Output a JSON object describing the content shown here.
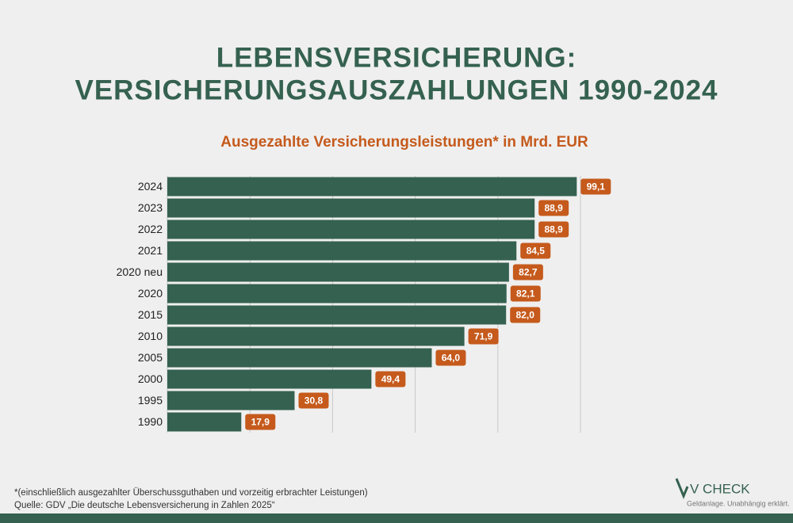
{
  "chart_data": {
    "type": "barh",
    "title": [
      "LEBENSVERSICHERUNG:",
      "VERSICHERUNGSAUSZAHLUNGEN 1990-2024"
    ],
    "subtitle": "Ausgezahlte Versicherungsleistungen* in Mrd. EUR",
    "categories": [
      "2024",
      "2023",
      "2022",
      "2021",
      "2020 neu",
      "2020",
      "2015",
      "2010",
      "2005",
      "2000",
      "1995",
      "1990"
    ],
    "values": [
      99.1,
      88.9,
      88.9,
      84.5,
      82.7,
      82.1,
      82.0,
      71.9,
      64.0,
      49.4,
      30.8,
      17.9
    ],
    "value_labels": [
      "99,1",
      "88,9",
      "88,9",
      "84,5",
      "82,7",
      "82,1",
      "82,0",
      "71,9",
      "64,0",
      "49,4",
      "30,8",
      "17,9"
    ],
    "color": "#356150",
    "label_color": "#c55a1c",
    "xlim": [
      0,
      100
    ],
    "xticks": [
      0,
      20,
      40,
      60,
      80,
      100
    ],
    "grid": true
  },
  "footnotes": [
    "*(einschließlich ausgezahlter Überschussguthaben und vorzeitig erbrachter Leistungen)",
    "Quelle: GDV „Die deutsche Lebensversicherung in Zahlen 2025“"
  ],
  "branding": {
    "name": "V CHECK",
    "tagline": "Geldanlage. Unabhängig erklärt."
  }
}
